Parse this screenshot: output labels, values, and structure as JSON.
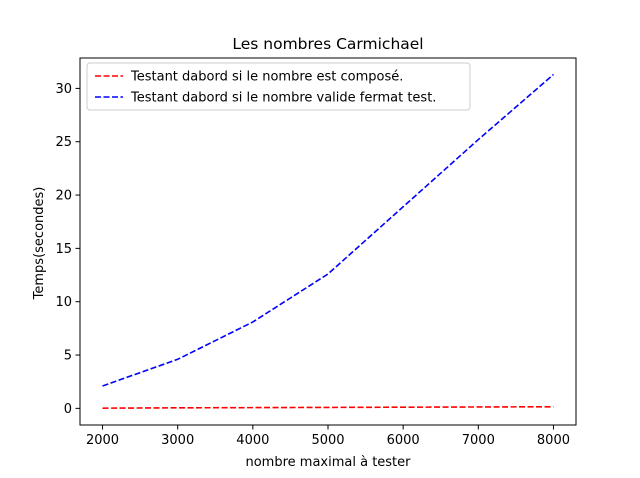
{
  "chart_data": {
    "type": "line",
    "title": "Les nombres Carmichael",
    "xlabel": "nombre maximal à tester",
    "ylabel": "Temps(secondes)",
    "xlim": [
      1700,
      8300
    ],
    "ylim": [
      -1.56,
      32.85
    ],
    "xticks": [
      2000,
      3000,
      4000,
      5000,
      6000,
      7000,
      8000
    ],
    "yticks": [
      0,
      5,
      10,
      15,
      20,
      25,
      30
    ],
    "grid": false,
    "legend_position": "top-left",
    "series": [
      {
        "name": "Testant dabord si le nombre est composé.",
        "color": "#ff0000",
        "dash": "dashed",
        "x": [
          2000,
          3000,
          4000,
          5000,
          6000,
          7000,
          8000
        ],
        "y": [
          0.02,
          0.05,
          0.07,
          0.09,
          0.11,
          0.13,
          0.15
        ]
      },
      {
        "name": "Testant dabord si le nombre valide fermat test.",
        "color": "#0000ff",
        "dash": "dashed",
        "x": [
          2000,
          3000,
          4000,
          5000,
          6000,
          7000,
          8000
        ],
        "y": [
          2.1,
          4.6,
          8.1,
          12.6,
          18.9,
          25.2,
          31.3
        ]
      }
    ]
  }
}
